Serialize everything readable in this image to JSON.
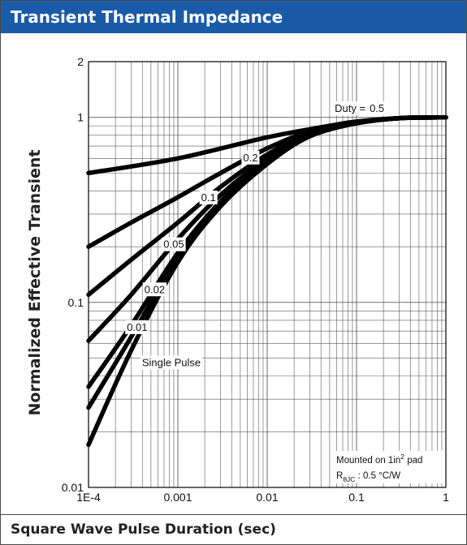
{
  "header": {
    "title": "Transient Thermal Impedance"
  },
  "footer": {
    "xlabel": "Square Wave Pulse Duration (sec)"
  },
  "colors": {
    "header_bg": "#1a5ba8",
    "curve": "#000000",
    "grid": "#5a5a5a"
  },
  "chart_data": {
    "type": "line",
    "title": "Transient Thermal Impedance",
    "xlabel": "Square Wave Pulse Duration (sec)",
    "ylabel": "Normalized Effective Transient",
    "xscale": "log",
    "yscale": "log",
    "xlim": [
      0.0001,
      1
    ],
    "ylim": [
      0.01,
      2
    ],
    "xticks": [
      "1E-4",
      "0.001",
      "0.01",
      "0.1",
      "1"
    ],
    "yticks": [
      "2",
      "1",
      "0.1",
      "0.01"
    ],
    "grid": true,
    "series": [
      {
        "name": "0.5",
        "x": [
          0.0001,
          0.001,
          0.01,
          0.05,
          0.1,
          0.3,
          1
        ],
        "y": [
          0.5,
          0.6,
          0.78,
          0.9,
          0.95,
          0.99,
          1.0
        ]
      },
      {
        "name": "0.2",
        "x": [
          0.0001,
          0.0003,
          0.001,
          0.003,
          0.01,
          0.03,
          0.1,
          0.3,
          1
        ],
        "y": [
          0.2,
          0.27,
          0.37,
          0.5,
          0.68,
          0.84,
          0.94,
          0.99,
          1.0
        ]
      },
      {
        "name": "0.1",
        "x": [
          0.0001,
          0.0003,
          0.001,
          0.003,
          0.01,
          0.03,
          0.1,
          0.3,
          1
        ],
        "y": [
          0.11,
          0.17,
          0.27,
          0.42,
          0.63,
          0.82,
          0.94,
          0.99,
          1.0
        ]
      },
      {
        "name": "0.05",
        "x": [
          0.0001,
          0.0003,
          0.001,
          0.003,
          0.01,
          0.03,
          0.1,
          0.3,
          1
        ],
        "y": [
          0.062,
          0.11,
          0.22,
          0.38,
          0.6,
          0.81,
          0.93,
          0.99,
          1.0
        ]
      },
      {
        "name": "0.02",
        "x": [
          0.0001,
          0.0003,
          0.001,
          0.003,
          0.01,
          0.03,
          0.1,
          0.3,
          1
        ],
        "y": [
          0.035,
          0.075,
          0.185,
          0.35,
          0.58,
          0.8,
          0.93,
          0.99,
          1.0
        ]
      },
      {
        "name": "0.01",
        "x": [
          0.0001,
          0.0003,
          0.001,
          0.003,
          0.01,
          0.03,
          0.1,
          0.3,
          1
        ],
        "y": [
          0.027,
          0.065,
          0.175,
          0.34,
          0.57,
          0.79,
          0.93,
          0.99,
          1.0
        ]
      },
      {
        "name": "Single Pulse",
        "x": [
          0.0001,
          0.0003,
          0.001,
          0.003,
          0.01,
          0.03,
          0.1,
          0.3,
          1
        ],
        "y": [
          0.017,
          0.055,
          0.165,
          0.33,
          0.56,
          0.79,
          0.93,
          0.99,
          1.0
        ]
      }
    ],
    "annotations": {
      "duty_prefix": "Duty =",
      "labels": [
        {
          "text": "0.5",
          "series": "0.5",
          "x": 0.2
        },
        {
          "text": "0.2",
          "series": "0.2",
          "x": 0.0065
        },
        {
          "text": "0.1",
          "series": "0.1",
          "x": 0.0022
        },
        {
          "text": "0.05",
          "series": "0.05",
          "x": 0.0009
        },
        {
          "text": "0.02",
          "series": "0.02",
          "x": 0.00055
        },
        {
          "text": "0.01",
          "series": "0.01",
          "x": 0.00035
        },
        {
          "text": "Single Pulse",
          "series": "Single Pulse",
          "x": 0.00045
        }
      ]
    },
    "note": {
      "line1_a": "Mounted on 1in",
      "line1_sup": "2",
      "line1_b": " pad",
      "line2_a": "R",
      "line2_sub": "θJC",
      "line2_b": " : 0.5 °C/W"
    }
  }
}
